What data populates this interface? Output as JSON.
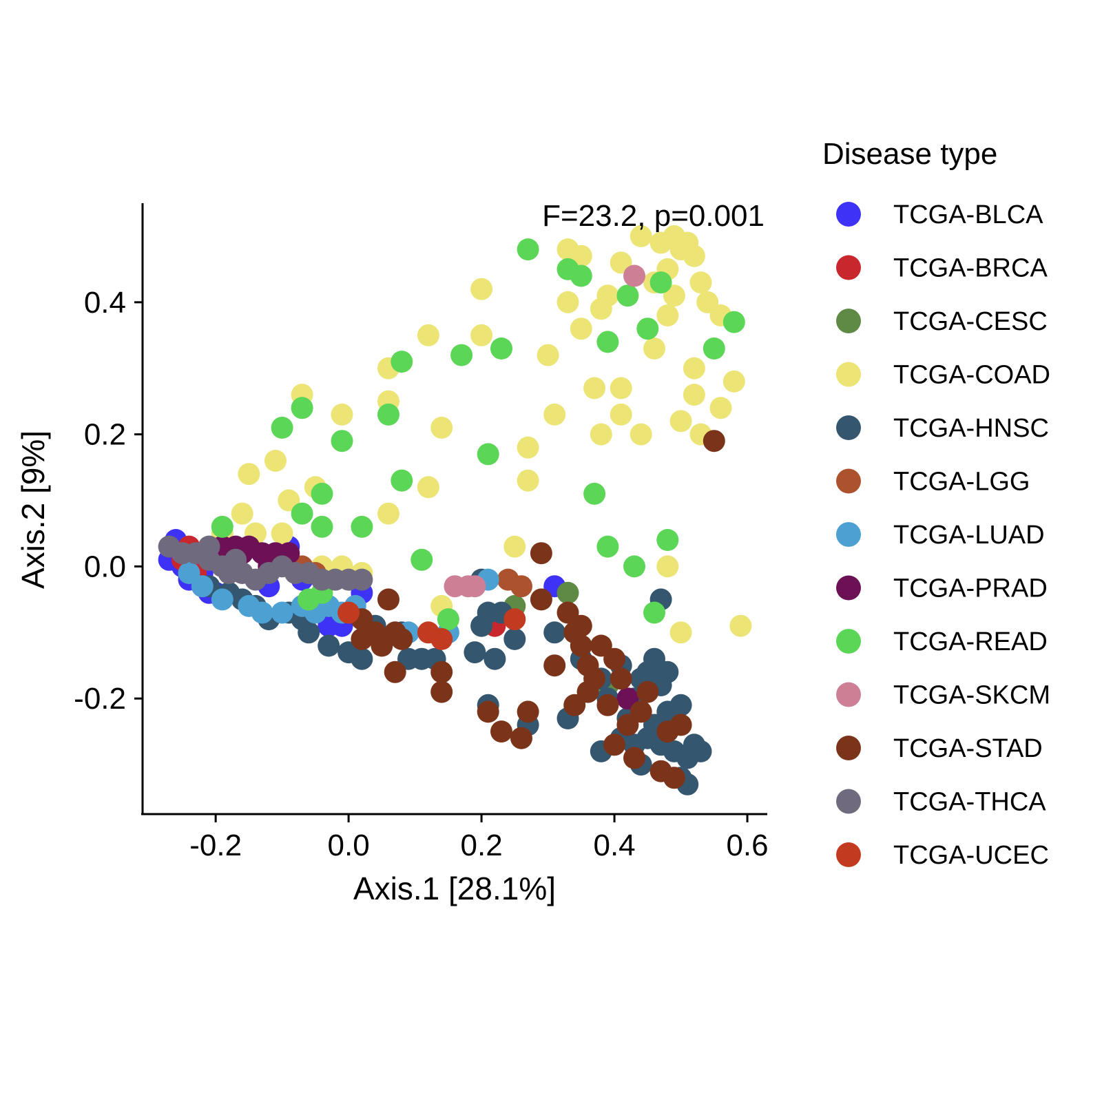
{
  "chart_data": {
    "type": "scatter",
    "title": "",
    "xlabel": "Axis.1   [28.1%]",
    "ylabel": "Axis.2   [9%]",
    "xlim": [
      -0.31,
      0.63
    ],
    "ylim": [
      -0.375,
      0.55
    ],
    "xticks": [
      -0.2,
      0.0,
      0.2,
      0.4,
      0.6
    ],
    "xtick_labels": [
      "-0.2",
      "0.0",
      "0.2",
      "0.4",
      "0.6"
    ],
    "yticks": [
      -0.2,
      0.0,
      0.2,
      0.4
    ],
    "ytick_labels": [
      "-0.2",
      "0.0",
      "0.2",
      "0.4"
    ],
    "grid": false,
    "annotation": "F=23.2, p=0.001",
    "legend": {
      "title": "Disease type",
      "placement": "right"
    },
    "series": [
      {
        "name": "TCGA-BLCA",
        "color": "#3d32f5",
        "points": [
          [
            -0.26,
            0.04
          ],
          [
            -0.27,
            0.01
          ],
          [
            -0.25,
            0.0
          ],
          [
            -0.24,
            -0.01
          ],
          [
            -0.23,
            -0.02
          ],
          [
            -0.22,
            -0.03
          ],
          [
            -0.21,
            -0.04
          ],
          [
            -0.2,
            -0.04
          ],
          [
            -0.12,
            -0.03
          ],
          [
            -0.09,
            0.03
          ],
          [
            -0.07,
            -0.02
          ],
          [
            -0.03,
            -0.09
          ],
          [
            -0.01,
            -0.09
          ],
          [
            0.02,
            -0.04
          ],
          [
            0.31,
            -0.03
          ],
          [
            -0.24,
            -0.02
          ],
          [
            -0.22,
            -0.01
          ]
        ]
      },
      {
        "name": "TCGA-BRCA",
        "color": "#c8282d",
        "points": [
          [
            -0.24,
            0.03
          ],
          [
            -0.25,
            0.01
          ],
          [
            -0.23,
            -0.01
          ],
          [
            -0.16,
            0.02
          ],
          [
            -0.12,
            0.01
          ],
          [
            -0.08,
            0.0
          ],
          [
            0.22,
            -0.09
          ],
          [
            0.24,
            -0.07
          ]
        ]
      },
      {
        "name": "TCGA-CESC",
        "color": "#5f8a45",
        "points": [
          [
            0.33,
            -0.04
          ],
          [
            0.39,
            -0.18
          ],
          [
            0.25,
            -0.06
          ]
        ]
      },
      {
        "name": "TCGA-COAD",
        "color": "#ece576",
        "points": [
          [
            -0.19,
            0.05
          ],
          [
            -0.16,
            0.08
          ],
          [
            -0.15,
            0.14
          ],
          [
            -0.14,
            0.05
          ],
          [
            -0.11,
            0.16
          ],
          [
            -0.1,
            0.05
          ],
          [
            -0.09,
            0.1
          ],
          [
            -0.07,
            0.26
          ],
          [
            -0.05,
            0.12
          ],
          [
            -0.04,
            0.0
          ],
          [
            -0.01,
            0.23
          ],
          [
            -0.01,
            0.0
          ],
          [
            0.02,
            -0.01
          ],
          [
            0.06,
            0.08
          ],
          [
            0.06,
            0.25
          ],
          [
            0.06,
            0.3
          ],
          [
            0.12,
            0.35
          ],
          [
            0.12,
            0.12
          ],
          [
            0.14,
            0.21
          ],
          [
            0.14,
            -0.06
          ],
          [
            0.2,
            0.42
          ],
          [
            0.2,
            0.35
          ],
          [
            0.25,
            0.03
          ],
          [
            0.27,
            0.13
          ],
          [
            0.27,
            0.18
          ],
          [
            0.3,
            0.32
          ],
          [
            0.31,
            0.23
          ],
          [
            0.33,
            0.48
          ],
          [
            0.33,
            0.4
          ],
          [
            0.35,
            0.36
          ],
          [
            0.35,
            0.47
          ],
          [
            0.37,
            0.27
          ],
          [
            0.38,
            0.2
          ],
          [
            0.38,
            0.39
          ],
          [
            0.39,
            0.41
          ],
          [
            0.41,
            0.46
          ],
          [
            0.41,
            0.27
          ],
          [
            0.41,
            0.23
          ],
          [
            0.44,
            0.2
          ],
          [
            0.44,
            0.5
          ],
          [
            0.46,
            0.43
          ],
          [
            0.46,
            0.33
          ],
          [
            0.47,
            0.49
          ],
          [
            0.48,
            0.45
          ],
          [
            0.48,
            0.38
          ],
          [
            0.49,
            0.5
          ],
          [
            0.49,
            0.41
          ],
          [
            0.5,
            0.22
          ],
          [
            0.5,
            0.48
          ],
          [
            0.51,
            0.49
          ],
          [
            0.52,
            0.47
          ],
          [
            0.52,
            0.3
          ],
          [
            0.52,
            0.26
          ],
          [
            0.53,
            0.2
          ],
          [
            0.53,
            0.43
          ],
          [
            0.54,
            0.4
          ],
          [
            0.56,
            0.38
          ],
          [
            0.56,
            0.24
          ],
          [
            0.58,
            0.28
          ],
          [
            0.59,
            -0.09
          ],
          [
            0.48,
            0.0
          ],
          [
            0.5,
            -0.1
          ]
        ]
      },
      {
        "name": "TCGA-HNSC",
        "color": "#34566f",
        "points": [
          [
            -0.21,
            -0.03
          ],
          [
            -0.18,
            -0.04
          ],
          [
            -0.16,
            -0.05
          ],
          [
            -0.14,
            -0.06
          ],
          [
            -0.12,
            -0.08
          ],
          [
            -0.09,
            -0.07
          ],
          [
            -0.07,
            -0.08
          ],
          [
            -0.06,
            -0.1
          ],
          [
            -0.03,
            -0.12
          ],
          [
            0.0,
            -0.13
          ],
          [
            0.02,
            -0.14
          ],
          [
            0.04,
            -0.09
          ],
          [
            0.08,
            -0.1
          ],
          [
            0.09,
            -0.14
          ],
          [
            0.11,
            -0.14
          ],
          [
            0.13,
            -0.14
          ],
          [
            0.2,
            -0.02
          ],
          [
            0.2,
            -0.09
          ],
          [
            0.19,
            -0.13
          ],
          [
            0.21,
            -0.07
          ],
          [
            0.22,
            -0.14
          ],
          [
            0.23,
            -0.07
          ],
          [
            0.25,
            -0.11
          ],
          [
            0.21,
            -0.21
          ],
          [
            0.27,
            -0.24
          ],
          [
            0.31,
            -0.1
          ],
          [
            0.33,
            -0.23
          ],
          [
            0.35,
            -0.14
          ],
          [
            0.38,
            -0.17
          ],
          [
            0.38,
            -0.28
          ],
          [
            0.39,
            -0.2
          ],
          [
            0.41,
            -0.15
          ],
          [
            0.41,
            -0.26
          ],
          [
            0.42,
            -0.23
          ],
          [
            0.43,
            -0.2
          ],
          [
            0.44,
            -0.17
          ],
          [
            0.44,
            -0.3
          ],
          [
            0.45,
            -0.16
          ],
          [
            0.46,
            -0.14
          ],
          [
            0.46,
            -0.24
          ],
          [
            0.47,
            -0.18
          ],
          [
            0.47,
            -0.27
          ],
          [
            0.48,
            -0.16
          ],
          [
            0.48,
            -0.22
          ],
          [
            0.49,
            -0.28
          ],
          [
            0.5,
            -0.21
          ],
          [
            0.5,
            -0.32
          ],
          [
            0.51,
            -0.29
          ],
          [
            0.52,
            -0.27
          ],
          [
            0.53,
            -0.28
          ],
          [
            0.51,
            -0.33
          ],
          [
            0.47,
            -0.05
          ],
          [
            0.45,
            -0.26
          ],
          [
            0.43,
            -0.27
          ]
        ]
      },
      {
        "name": "TCGA-LGG",
        "color": "#ad522e",
        "points": [
          [
            -0.11,
            0.01
          ],
          [
            -0.09,
            0.01
          ],
          [
            -0.07,
            0.0
          ],
          [
            -0.05,
            -0.01
          ],
          [
            0.24,
            -0.02
          ],
          [
            0.26,
            -0.03
          ]
        ]
      },
      {
        "name": "TCGA-LUAD",
        "color": "#4da0d2",
        "points": [
          [
            -0.24,
            -0.01
          ],
          [
            -0.22,
            -0.03
          ],
          [
            -0.19,
            -0.05
          ],
          [
            -0.15,
            -0.06
          ],
          [
            -0.13,
            -0.07
          ],
          [
            -0.1,
            -0.07
          ],
          [
            -0.07,
            -0.06
          ],
          [
            -0.05,
            -0.07
          ],
          [
            -0.03,
            -0.06
          ],
          [
            -0.01,
            -0.07
          ],
          [
            0.01,
            -0.06
          ],
          [
            0.09,
            -0.1
          ],
          [
            0.15,
            -0.1
          ],
          [
            0.21,
            -0.02
          ]
        ]
      },
      {
        "name": "TCGA-PRAD",
        "color": "#6c1156",
        "points": [
          [
            -0.19,
            0.03
          ],
          [
            -0.17,
            0.03
          ],
          [
            -0.16,
            0.02
          ],
          [
            -0.15,
            0.03
          ],
          [
            -0.13,
            0.02
          ],
          [
            -0.12,
            0.0
          ],
          [
            -0.11,
            0.02
          ],
          [
            -0.09,
            0.02
          ],
          [
            0.42,
            -0.2
          ]
        ]
      },
      {
        "name": "TCGA-READ",
        "color": "#5cd656",
        "points": [
          [
            -0.19,
            0.06
          ],
          [
            -0.1,
            0.21
          ],
          [
            -0.07,
            0.24
          ],
          [
            -0.07,
            0.08
          ],
          [
            -0.04,
            0.11
          ],
          [
            -0.04,
            0.06
          ],
          [
            -0.01,
            0.19
          ],
          [
            0.02,
            0.06
          ],
          [
            0.06,
            0.23
          ],
          [
            0.08,
            0.31
          ],
          [
            0.08,
            0.13
          ],
          [
            0.11,
            0.01
          ],
          [
            0.15,
            -0.08
          ],
          [
            0.17,
            0.32
          ],
          [
            0.21,
            0.17
          ],
          [
            0.23,
            0.33
          ],
          [
            0.27,
            0.48
          ],
          [
            0.33,
            0.45
          ],
          [
            0.35,
            0.44
          ],
          [
            0.37,
            0.11
          ],
          [
            0.39,
            0.34
          ],
          [
            0.39,
            0.03
          ],
          [
            0.42,
            0.41
          ],
          [
            0.43,
            0.0
          ],
          [
            0.45,
            0.36
          ],
          [
            0.46,
            -0.07
          ],
          [
            0.47,
            0.43
          ],
          [
            0.48,
            0.04
          ],
          [
            0.55,
            0.33
          ],
          [
            0.58,
            0.37
          ],
          [
            -0.06,
            -0.05
          ],
          [
            -0.04,
            -0.04
          ]
        ]
      },
      {
        "name": "TCGA-SKCM",
        "color": "#cd7f95",
        "points": [
          [
            0.16,
            -0.03
          ],
          [
            0.18,
            -0.03
          ],
          [
            0.19,
            -0.03
          ],
          [
            0.43,
            0.44
          ]
        ]
      },
      {
        "name": "TCGA-STAD",
        "color": "#7b3419",
        "points": [
          [
            0.02,
            -0.08
          ],
          [
            0.02,
            -0.11
          ],
          [
            0.04,
            -0.1
          ],
          [
            0.05,
            -0.12
          ],
          [
            0.06,
            -0.05
          ],
          [
            0.07,
            -0.1
          ],
          [
            0.07,
            -0.16
          ],
          [
            0.08,
            -0.11
          ],
          [
            0.14,
            -0.16
          ],
          [
            0.14,
            -0.19
          ],
          [
            0.21,
            -0.22
          ],
          [
            0.23,
            -0.25
          ],
          [
            0.26,
            -0.26
          ],
          [
            0.27,
            -0.22
          ],
          [
            0.29,
            0.02
          ],
          [
            0.29,
            -0.05
          ],
          [
            0.31,
            -0.15
          ],
          [
            0.33,
            -0.07
          ],
          [
            0.34,
            -0.1
          ],
          [
            0.34,
            -0.21
          ],
          [
            0.35,
            -0.09
          ],
          [
            0.35,
            -0.12
          ],
          [
            0.36,
            -0.15
          ],
          [
            0.36,
            -0.19
          ],
          [
            0.37,
            -0.17
          ],
          [
            0.38,
            -0.12
          ],
          [
            0.39,
            -0.21
          ],
          [
            0.4,
            -0.14
          ],
          [
            0.4,
            -0.27
          ],
          [
            0.41,
            -0.17
          ],
          [
            0.42,
            -0.24
          ],
          [
            0.43,
            -0.29
          ],
          [
            0.44,
            -0.22
          ],
          [
            0.45,
            -0.19
          ],
          [
            0.47,
            -0.31
          ],
          [
            0.48,
            -0.25
          ],
          [
            0.49,
            -0.32
          ],
          [
            0.5,
            -0.24
          ],
          [
            0.55,
            0.19
          ]
        ]
      },
      {
        "name": "TCGA-THCA",
        "color": "#6f6a7d",
        "points": [
          [
            -0.27,
            0.03
          ],
          [
            -0.25,
            0.02
          ],
          [
            -0.23,
            0.02
          ],
          [
            -0.21,
            0.01
          ],
          [
            -0.19,
            0.0
          ],
          [
            -0.18,
            -0.01
          ],
          [
            -0.16,
            -0.01
          ],
          [
            -0.14,
            -0.02
          ],
          [
            -0.12,
            -0.01
          ],
          [
            -0.1,
            0.0
          ],
          [
            -0.08,
            -0.01
          ],
          [
            -0.06,
            -0.01
          ],
          [
            -0.04,
            -0.02
          ],
          [
            -0.02,
            -0.02
          ],
          [
            0.0,
            -0.02
          ],
          [
            0.02,
            -0.02
          ],
          [
            -0.21,
            0.03
          ],
          [
            -0.17,
            0.01
          ]
        ]
      },
      {
        "name": "TCGA-UCEC",
        "color": "#c23a1f",
        "points": [
          [
            0.0,
            -0.07
          ],
          [
            0.12,
            -0.1
          ],
          [
            0.14,
            -0.11
          ],
          [
            0.25,
            -0.08
          ]
        ]
      }
    ]
  }
}
